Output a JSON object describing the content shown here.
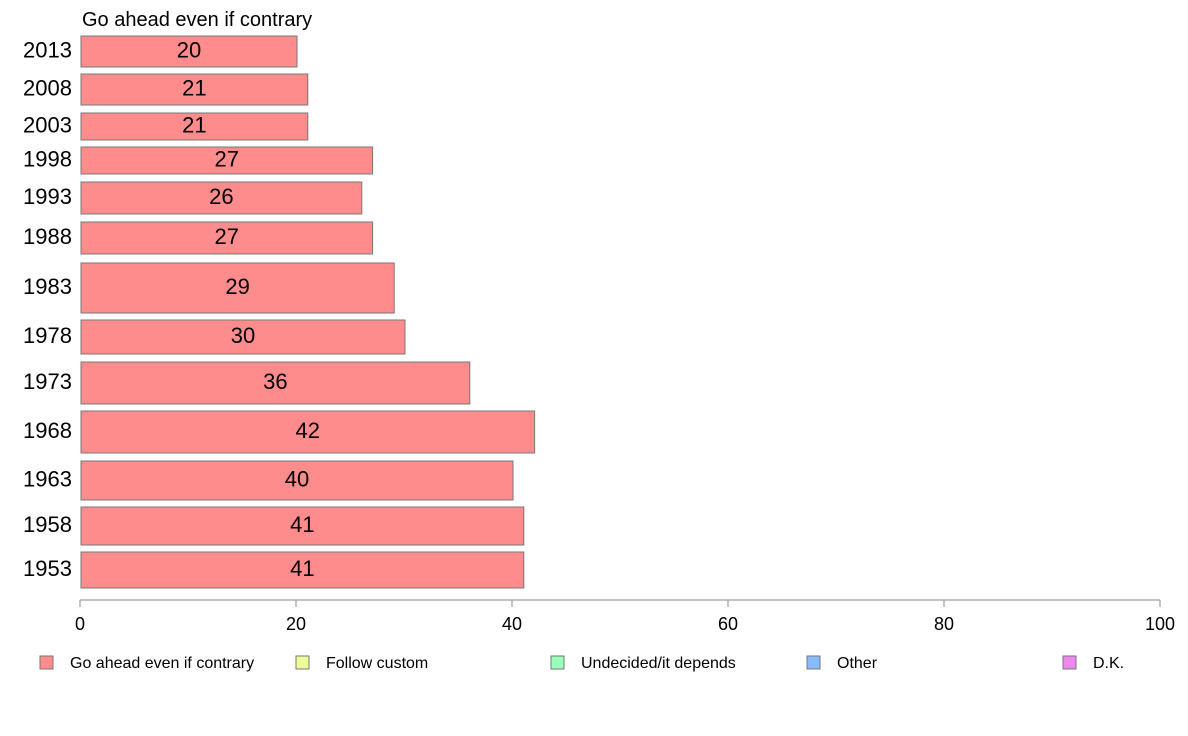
{
  "chart_data": {
    "type": "bar",
    "orientation": "horizontal",
    "series_title": "Go ahead even if contrary",
    "categories": [
      "2013",
      "2008",
      "2003",
      "1998",
      "1993",
      "1988",
      "1983",
      "1978",
      "1973",
      "1968",
      "1963",
      "1958",
      "1953"
    ],
    "series": [
      {
        "name": "Go ahead even if contrary",
        "values": [
          20,
          21,
          21,
          27,
          26,
          27,
          29,
          30,
          36,
          42,
          40,
          41,
          41
        ],
        "color": "#ff8c8c"
      }
    ],
    "x_ticks": [
      "0",
      "20",
      "40",
      "60",
      "80",
      "100"
    ],
    "xlim": [
      0,
      100
    ],
    "grid": false,
    "legend_position": "bottom",
    "legend": [
      {
        "label": "Go ahead even if contrary",
        "color": "#ff8c8c"
      },
      {
        "label": "Follow custom",
        "color": "#eeff99"
      },
      {
        "label": "Undecided/it depends",
        "color": "#99ffbb"
      },
      {
        "label": "Other",
        "color": "#88bbff"
      },
      {
        "label": "D.K.",
        "color": "#ee88ee"
      }
    ]
  }
}
